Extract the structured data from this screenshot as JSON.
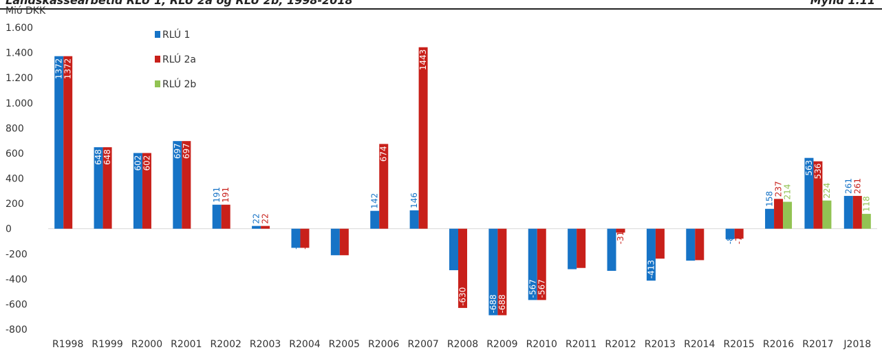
{
  "header": {
    "title": "Landskassearbetid RLÚ 1, RLÚ 2a og RLÚ 2b, 1998-2018",
    "figure_label": "Mynd 1.11"
  },
  "colors": {
    "rlu1": "#1673c6",
    "rlu2a": "#c8201a",
    "rlu2b": "#92c353"
  },
  "chart_data": {
    "type": "bar",
    "ylabel": "Mió DKK",
    "ylim": [
      -800,
      1600
    ],
    "yticks": [
      -800,
      -600,
      -400,
      -200,
      0,
      200,
      400,
      600,
      800,
      1000,
      1200,
      1400,
      1600
    ],
    "ytick_labels": [
      "-800",
      "-600",
      "-400",
      "-200",
      "0",
      "200",
      "400",
      "600",
      "800",
      "1.000",
      "1.200",
      "1.400",
      "1.600"
    ],
    "grid": false,
    "legend_position": "top-left",
    "categories": [
      "R1998",
      "R1999",
      "R2000",
      "R2001",
      "R2002",
      "R2003",
      "R2004",
      "R2005",
      "R2006",
      "R2007",
      "R2008",
      "R2009",
      "R2010",
      "R2011",
      "R2012",
      "R2013",
      "R2014",
      "R2015",
      "R2016",
      "R2017",
      "J2018"
    ],
    "series": [
      {
        "name": "RLÚ 1",
        "color": "#1673c6",
        "values": [
          1372,
          648,
          602,
          697,
          191,
          22,
          -152,
          -211,
          142,
          146,
          -330,
          -688,
          -567,
          -322,
          -335,
          -413,
          -254,
          -83,
          158,
          563,
          261
        ]
      },
      {
        "name": "RLÚ 2a",
        "color": "#c8201a",
        "values": [
          1372,
          648,
          602,
          697,
          191,
          22,
          -152,
          -211,
          674,
          1443,
          -630,
          -688,
          -567,
          -312,
          -31,
          -238,
          -250,
          -79,
          237,
          536,
          261
        ]
      },
      {
        "name": "RLÚ 2b",
        "color": "#92c353",
        "values": [
          null,
          null,
          null,
          null,
          null,
          null,
          null,
          null,
          null,
          null,
          null,
          null,
          null,
          null,
          null,
          null,
          null,
          null,
          214,
          224,
          118
        ]
      }
    ]
  }
}
